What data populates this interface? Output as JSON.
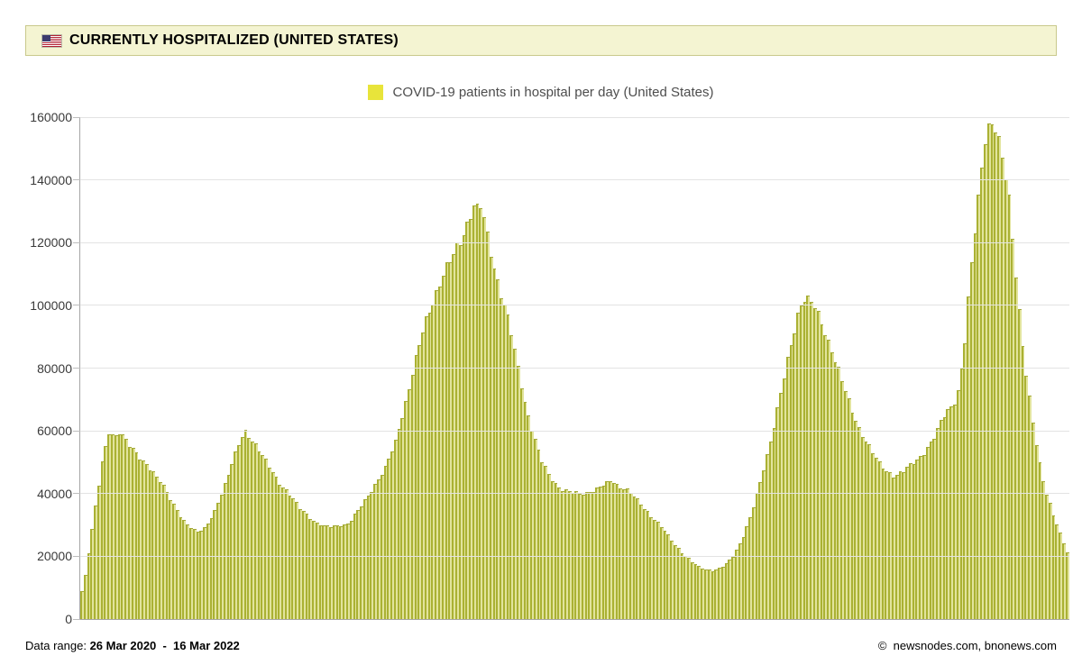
{
  "header": {
    "title": "CURRENTLY HOSPITALIZED (UNITED STATES)",
    "flag_icon": "us-flag",
    "background_color": "#f4f4d2",
    "border_color": "#c9c98c"
  },
  "legend": {
    "label": "COVID-19 patients in hospital per day (United States)",
    "swatch_color": "#e8e43a"
  },
  "footer": {
    "data_range_label": "Data range:",
    "data_range_value": "26 Mar 2020  -  16 Mar 2022",
    "credit": "©  newsnodes.com, bnonews.com"
  },
  "colors": {
    "bar_fill": "#e2e49c",
    "bar_border": "#aab133",
    "gridline": "#e3e3e3",
    "axis": "#a6a6a6"
  },
  "chart_data": {
    "type": "bar",
    "title": "COVID-19 patients in hospital per day (United States)",
    "xlabel": "",
    "ylabel": "",
    "ylim": [
      0,
      160000
    ],
    "y_ticks": [
      0,
      20000,
      40000,
      60000,
      80000,
      100000,
      120000,
      140000,
      160000
    ],
    "grid": "horizontal",
    "legend_position": "top-center",
    "x_range": [
      "2020-03-26",
      "2022-03-16"
    ],
    "x_tick_labels_visible": false,
    "series": [
      {
        "name": "COVID-19 patients in hospital per day (United States)",
        "keypoints": [
          [
            "2020-03-26",
            9000
          ],
          [
            "2020-03-29",
            15000
          ],
          [
            "2020-04-02",
            27000
          ],
          [
            "2020-04-06",
            39000
          ],
          [
            "2020-04-10",
            50500
          ],
          [
            "2020-04-15",
            60000
          ],
          [
            "2020-04-19",
            57500
          ],
          [
            "2020-04-23",
            59500
          ],
          [
            "2020-04-28",
            56500
          ],
          [
            "2020-05-03",
            54500
          ],
          [
            "2020-05-10",
            50000
          ],
          [
            "2020-05-17",
            46500
          ],
          [
            "2020-05-24",
            43500
          ],
          [
            "2020-06-01",
            36500
          ],
          [
            "2020-06-07",
            32000
          ],
          [
            "2020-06-13",
            29500
          ],
          [
            "2020-06-19",
            28000
          ],
          [
            "2020-06-24",
            29000
          ],
          [
            "2020-06-30",
            33000
          ],
          [
            "2020-07-07",
            41000
          ],
          [
            "2020-07-13",
            49000
          ],
          [
            "2020-07-18",
            55000
          ],
          [
            "2020-07-23",
            59800
          ],
          [
            "2020-07-28",
            57500
          ],
          [
            "2020-08-03",
            54000
          ],
          [
            "2020-08-10",
            48500
          ],
          [
            "2020-08-17",
            43500
          ],
          [
            "2020-08-24",
            40500
          ],
          [
            "2020-09-01",
            35500
          ],
          [
            "2020-09-08",
            32500
          ],
          [
            "2020-09-15",
            30500
          ],
          [
            "2020-09-22",
            29300
          ],
          [
            "2020-09-29",
            29800
          ],
          [
            "2020-10-06",
            30500
          ],
          [
            "2020-10-13",
            34000
          ],
          [
            "2020-10-20",
            38500
          ],
          [
            "2020-10-27",
            43500
          ],
          [
            "2020-11-03",
            48500
          ],
          [
            "2020-11-10",
            56000
          ],
          [
            "2020-11-17",
            68000
          ],
          [
            "2020-11-24",
            81000
          ],
          [
            "2020-12-01",
            93000
          ],
          [
            "2020-12-08",
            102000
          ],
          [
            "2020-12-15",
            110000
          ],
          [
            "2020-12-22",
            115500
          ],
          [
            "2020-12-28",
            121000
          ],
          [
            "2021-01-03",
            128000
          ],
          [
            "2021-01-06",
            132400
          ],
          [
            "2021-01-09",
            130500
          ],
          [
            "2021-01-12",
            131500
          ],
          [
            "2021-01-16",
            123000
          ],
          [
            "2021-01-21",
            113000
          ],
          [
            "2021-01-27",
            103000
          ],
          [
            "2021-02-01",
            95000
          ],
          [
            "2021-02-07",
            82000
          ],
          [
            "2021-02-13",
            69000
          ],
          [
            "2021-02-19",
            59000
          ],
          [
            "2021-02-25",
            50500
          ],
          [
            "2021-03-03",
            45500
          ],
          [
            "2021-03-10",
            42000
          ],
          [
            "2021-03-17",
            40500
          ],
          [
            "2021-03-24",
            40000
          ],
          [
            "2021-03-31",
            40500
          ],
          [
            "2021-04-07",
            41500
          ],
          [
            "2021-04-13",
            43000
          ],
          [
            "2021-04-17",
            44500
          ],
          [
            "2021-04-22",
            42500
          ],
          [
            "2021-04-29",
            41000
          ],
          [
            "2021-05-06",
            38000
          ],
          [
            "2021-05-13",
            34500
          ],
          [
            "2021-05-20",
            31000
          ],
          [
            "2021-05-27",
            27500
          ],
          [
            "2021-06-03",
            23500
          ],
          [
            "2021-06-10",
            20000
          ],
          [
            "2021-06-17",
            17500
          ],
          [
            "2021-06-24",
            16000
          ],
          [
            "2021-06-30",
            15500
          ],
          [
            "2021-07-07",
            16500
          ],
          [
            "2021-07-14",
            19500
          ],
          [
            "2021-07-21",
            25000
          ],
          [
            "2021-07-28",
            33000
          ],
          [
            "2021-08-04",
            44000
          ],
          [
            "2021-08-11",
            56500
          ],
          [
            "2021-08-18",
            70000
          ],
          [
            "2021-08-25",
            85000
          ],
          [
            "2021-08-31",
            97000
          ],
          [
            "2021-09-04",
            102500
          ],
          [
            "2021-09-08",
            101500
          ],
          [
            "2021-09-12",
            100000
          ],
          [
            "2021-09-18",
            94000
          ],
          [
            "2021-09-25",
            86000
          ],
          [
            "2021-10-02",
            76500
          ],
          [
            "2021-10-09",
            67500
          ],
          [
            "2021-10-16",
            60000
          ],
          [
            "2021-10-23",
            54500
          ],
          [
            "2021-10-30",
            49500
          ],
          [
            "2021-11-05",
            47000
          ],
          [
            "2021-11-10",
            45500
          ],
          [
            "2021-11-16",
            47000
          ],
          [
            "2021-11-22",
            49500
          ],
          [
            "2021-11-28",
            51500
          ],
          [
            "2021-12-04",
            54500
          ],
          [
            "2021-12-10",
            58500
          ],
          [
            "2021-12-15",
            64500
          ],
          [
            "2021-12-19",
            67000
          ],
          [
            "2021-12-23",
            68500
          ],
          [
            "2021-12-27",
            73000
          ],
          [
            "2021-12-31",
            87000
          ],
          [
            "2022-01-04",
            108000
          ],
          [
            "2022-01-08",
            126000
          ],
          [
            "2022-01-12",
            142000
          ],
          [
            "2022-01-15",
            153000
          ],
          [
            "2022-01-17",
            156500
          ],
          [
            "2022-01-19",
            154500
          ],
          [
            "2022-01-21",
            158500
          ],
          [
            "2022-01-24",
            153500
          ],
          [
            "2022-01-28",
            147000
          ],
          [
            "2022-02-01",
            138000
          ],
          [
            "2022-02-05",
            118000
          ],
          [
            "2022-02-09",
            98000
          ],
          [
            "2022-02-13",
            81000
          ],
          [
            "2022-02-17",
            69000
          ],
          [
            "2022-02-21",
            57500
          ],
          [
            "2022-02-25",
            47500
          ],
          [
            "2022-03-01",
            40000
          ],
          [
            "2022-03-05",
            34500
          ],
          [
            "2022-03-09",
            29500
          ],
          [
            "2022-03-13",
            25000
          ],
          [
            "2022-03-16",
            21500
          ]
        ]
      }
    ]
  }
}
